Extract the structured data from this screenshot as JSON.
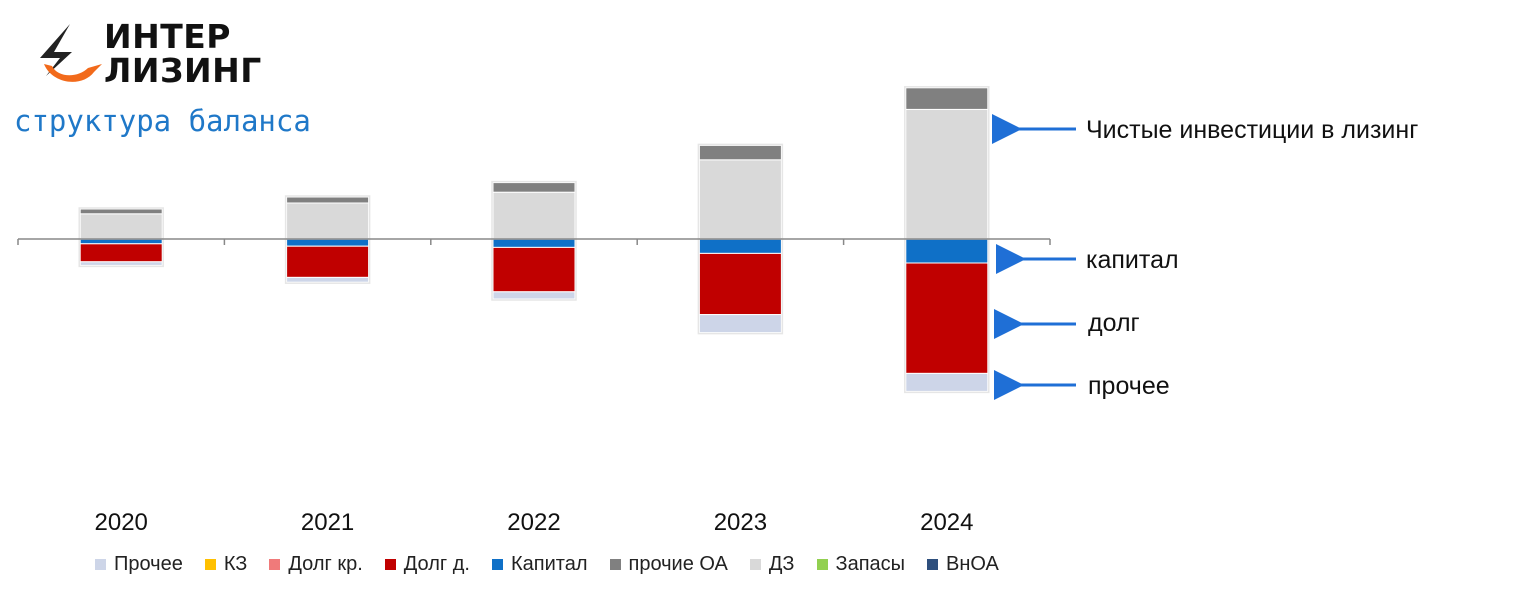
{
  "logo": {
    "line1": "ИНТЕР",
    "line2": "ЛИЗИНГ"
  },
  "subtitle": "структура баланса",
  "annotations": {
    "net_investment": "Чистые инвестиции в лизинг",
    "capital": "капитал",
    "debt": "долг",
    "other": "прочее"
  },
  "colors": {
    "Прочее": "#cdd5e8",
    "КЗ": "#ffc000",
    "Долг кр.": "#f07a7a",
    "Долг д.": "#c00000",
    "Капитал": "#0f70c7",
    "прочие ОА": "#808080",
    "ДЗ": "#d9d9d9",
    "Запасы": "#92d050",
    "ВнОА": "#2e4f7d",
    "arrow": "#1f6fd6"
  },
  "chart_data": {
    "type": "bar",
    "stacked": true,
    "categories": [
      "2020",
      "2021",
      "2022",
      "2023",
      "2024"
    ],
    "assets_series": [
      {
        "name": "ДЗ",
        "values": [
          21,
          30,
          39,
          66,
          108
        ]
      },
      {
        "name": "прочие ОА",
        "values": [
          4,
          5,
          8,
          12,
          18
        ]
      }
    ],
    "liabilities_series": [
      {
        "name": "Капитал",
        "values": [
          4,
          6,
          7,
          12,
          20
        ]
      },
      {
        "name": "Долг д.",
        "values": [
          15,
          26,
          37,
          51,
          92
        ]
      },
      {
        "name": "Прочее",
        "values": [
          3,
          4,
          6,
          15,
          15
        ]
      }
    ],
    "legend": [
      "Прочее",
      "КЗ",
      "Долг кр.",
      "Долг д.",
      "Капитал",
      "прочие ОА",
      "ДЗ",
      "Запасы",
      "ВнОА"
    ],
    "ylim": [
      -130,
      130
    ],
    "grid": false,
    "legend_position": "bottom"
  }
}
